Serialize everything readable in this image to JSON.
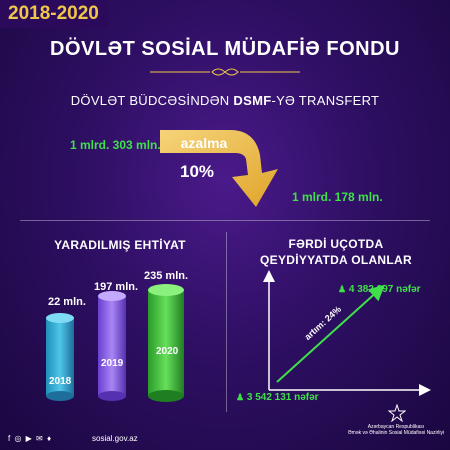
{
  "header": {
    "year_range": "2018-2020",
    "title": "DÖVLƏT SOSİAL MÜDAFİƏ FONDU",
    "subtitle_prefix": "DÖVLƏT BÜDCƏSİNDƏN ",
    "subtitle_bold": "DSMF",
    "subtitle_suffix": "-YƏ TRANSFERT"
  },
  "transfer": {
    "from_value": "1 mlrd. 303 mln.",
    "label": "azalma",
    "percent": "10%",
    "to_value": "1 mlrd. 178 mln."
  },
  "reserve": {
    "title": "YARADILMIŞ EHTİYAT",
    "bars": [
      {
        "year": "2018",
        "value_label": "22 mln.",
        "value": 22
      },
      {
        "year": "2019",
        "value_label": "197 mln.",
        "value": 197
      },
      {
        "year": "2020",
        "value_label": "235 mln.",
        "value": 235
      }
    ]
  },
  "registry": {
    "title_line1": "FƏRDİ UÇOTDA",
    "title_line2": "QEYDİYYATDA OLANLAR",
    "start_value": "3 542 131 nəfər",
    "end_value": "4 382 297 nəfər",
    "growth_label": "artım: 24%"
  },
  "footer": {
    "social_icons": "f ◎ ▶ ✉ ♦",
    "website": "sosial.gov.az",
    "ministry_line1": "Azərbaycan Respublikası",
    "ministry_line2": "Əmək və Əhalinin Sosial Müdafiəsi Nazirliyi"
  },
  "colors": {
    "gold": "#f0c64a",
    "green": "#3fe04a",
    "background": "#2e0f63"
  }
}
